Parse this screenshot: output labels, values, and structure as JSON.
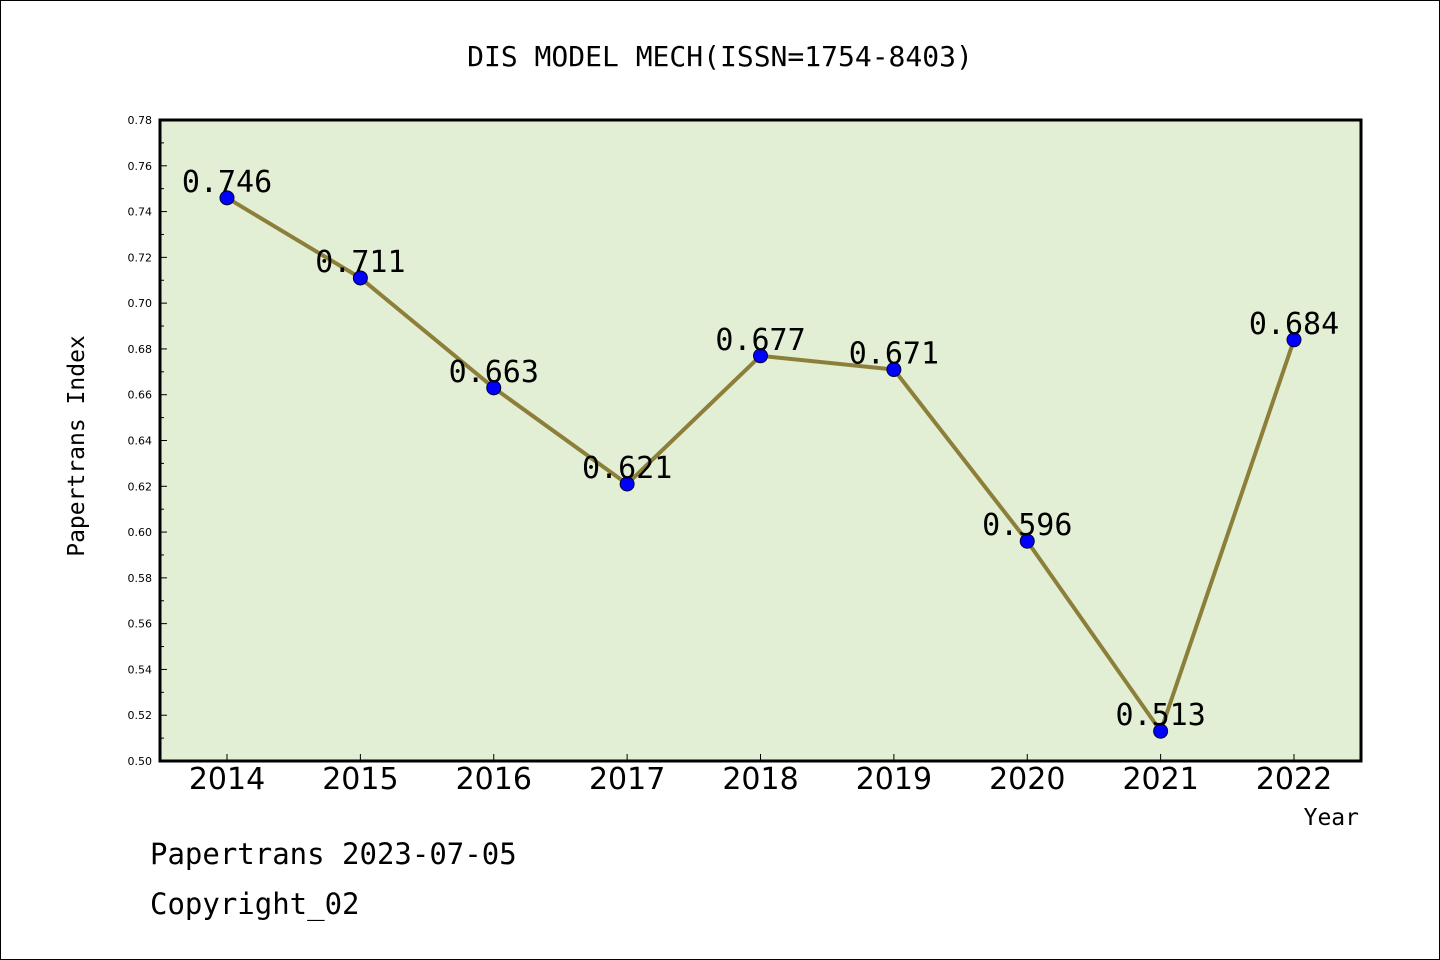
{
  "chart_data": {
    "type": "line",
    "title": "DIS MODEL MECH(ISSN=1754-8403)",
    "xlabel": "Year",
    "ylabel": "Papertrans Index",
    "categories": [
      "2014",
      "2015",
      "2016",
      "2017",
      "2018",
      "2019",
      "2020",
      "2021",
      "2022"
    ],
    "series": [
      {
        "values": [
          0.746,
          0.711,
          0.663,
          0.621,
          0.677,
          0.671,
          0.596,
          0.513,
          0.684
        ],
        "data_labels": [
          "0.746",
          "0.711",
          "0.663",
          "0.621",
          "0.677",
          "0.671",
          "0.596",
          "0.513",
          "0.684"
        ]
      }
    ],
    "ylim": [
      0.5,
      0.78
    ],
    "yticks": [
      "0.50",
      "0.52",
      "0.54",
      "0.56",
      "0.58",
      "0.60",
      "0.62",
      "0.64",
      "0.66",
      "0.68",
      "0.70",
      "0.72",
      "0.74",
      "0.76",
      "0.78"
    ],
    "grid": false,
    "legend": "none",
    "colors": {
      "plot_background": "#e2efd5",
      "line": "#8c7f3a",
      "marker": "#0000ff"
    }
  },
  "footer": {
    "line1": "Papertrans 2023-07-05",
    "line2": "Copyright_02"
  }
}
